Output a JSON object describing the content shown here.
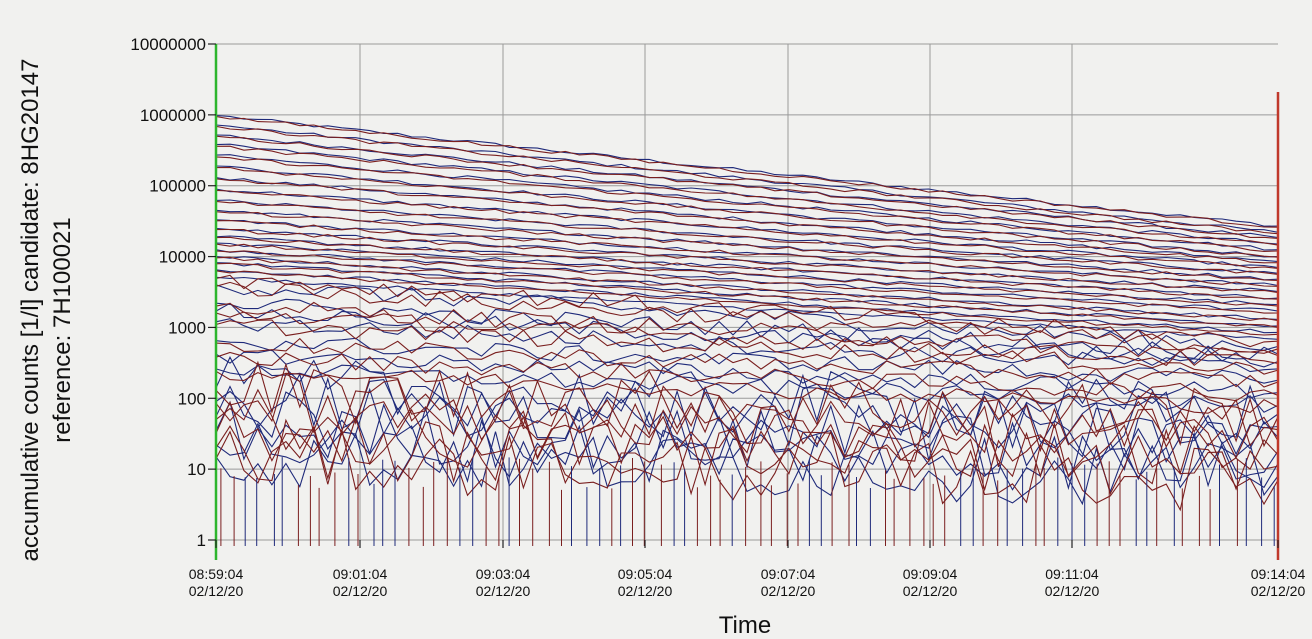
{
  "chart_data": {
    "type": "line",
    "xlabel": "Time",
    "ylabel_line1": "accumulative counts [1/l]   candidate: 8HG20147",
    "ylabel_line2": "reference: 7H100021",
    "y_scale": "log",
    "ylim": [
      1,
      10000000
    ],
    "y_ticks": [
      "10000000",
      "1000000",
      "100000",
      "10000",
      "1000",
      "100",
      "10",
      "1"
    ],
    "x_ticks": [
      {
        "time": "08:59:04",
        "date": "02/12/20"
      },
      {
        "time": "09:01:04",
        "date": "02/12/20"
      },
      {
        "time": "09:03:04",
        "date": "02/12/20"
      },
      {
        "time": "09:05:04",
        "date": "02/12/20"
      },
      {
        "time": "09:07:04",
        "date": "02/12/20"
      },
      {
        "time": "09:09:04",
        "date": "02/12/20"
      },
      {
        "time": "09:11:04",
        "date": "02/12/20"
      },
      {
        "time": "09:14:04",
        "date": "02/12/20"
      }
    ],
    "grid": true,
    "colors": {
      "reference": "#7a1f1f",
      "candidate": "#1f2a7a",
      "start_marker": "#2db52d",
      "end_marker": "#c0392b",
      "grid": "#9a9a9a"
    },
    "series_groups": [
      {
        "color_key": "candidate",
        "start_values": [
          980000,
          720000,
          520000,
          380000,
          270000,
          190000,
          130000,
          90000,
          62000,
          45000,
          33000,
          25000,
          19000,
          15500,
          12500,
          10000,
          8200,
          6500,
          5100,
          4000
        ],
        "end_values": [
          27000,
          22000,
          18500,
          15000,
          12500,
          10000,
          8500,
          7000,
          5800,
          4800,
          3900,
          3200,
          2600,
          2100,
          1700,
          1300,
          1050,
          850,
          680,
          540
        ]
      },
      {
        "color_key": "reference",
        "start_values": [
          950000,
          690000,
          500000,
          360000,
          255000,
          180000,
          125000,
          86000,
          60000,
          43000,
          32000,
          24000,
          18500,
          15000,
          12000,
          9600,
          7900,
          6300,
          4900,
          3800
        ],
        "end_values": [
          26000,
          21000,
          18000,
          14500,
          12000,
          9800,
          8200,
          6800,
          5600,
          4600,
          3800,
          3100,
          2500,
          2000,
          1600,
          1250,
          1000,
          800,
          640,
          500
        ]
      },
      {
        "color_key": "candidate",
        "start_values": [
          2200,
          1700,
          1200,
          650,
          420,
          260,
          140,
          90,
          55,
          35,
          22,
          15
        ],
        "end_values": [
          420,
          330,
          260,
          180,
          120,
          80,
          60,
          40,
          28,
          18,
          12,
          8
        ]
      },
      {
        "color_key": "reference",
        "start_values": [
          2000,
          1600,
          1100,
          600,
          380,
          240,
          130,
          85,
          50,
          32,
          20,
          14
        ],
        "end_values": [
          400,
          310,
          250,
          170,
          110,
          75,
          55,
          36,
          25,
          16,
          11,
          7
        ]
      }
    ]
  }
}
